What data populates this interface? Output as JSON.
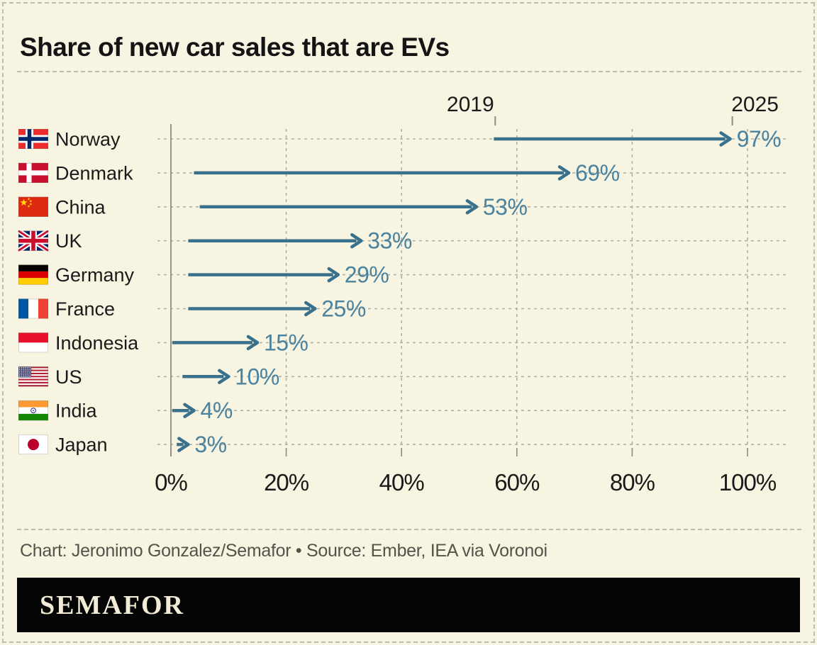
{
  "title": "Share of new car sales that are EVs",
  "credit": "Chart: Jeronimo Gonzalez/Semafor • Source: Ember, IEA via Voronoi",
  "logo": "SEMAFOR",
  "chart_data": {
    "type": "bar",
    "subtype": "arrow-change",
    "title": "Share of new car sales that are EVs",
    "xlabel": "",
    "ylabel": "",
    "xlim": [
      0,
      100
    ],
    "grid": "dashed",
    "x_tick_labels": [
      "0%",
      "20%",
      "40%",
      "60%",
      "80%",
      "100%"
    ],
    "x_tick_values": [
      0,
      20,
      40,
      60,
      80,
      100
    ],
    "start_year_label": "2019",
    "end_year_label": "2025",
    "categories": [
      "Norway",
      "Denmark",
      "China",
      "UK",
      "Germany",
      "France",
      "Indonesia",
      "US",
      "India",
      "Japan"
    ],
    "flag_icon_names": [
      "norway-flag-icon",
      "denmark-flag-icon",
      "china-flag-icon",
      "uk-flag-icon",
      "germany-flag-icon",
      "france-flag-icon",
      "indonesia-flag-icon",
      "us-flag-icon",
      "india-flag-icon",
      "japan-flag-icon"
    ],
    "flag_codes": [
      "norway",
      "denmark",
      "china",
      "uk",
      "germany",
      "france",
      "indonesia",
      "us",
      "india",
      "japan"
    ],
    "series": [
      {
        "name": "2019",
        "values": [
          56,
          4,
          5,
          3,
          3,
          3,
          0,
          2,
          0,
          1
        ]
      },
      {
        "name": "2025",
        "values": [
          97,
          69,
          53,
          33,
          29,
          25,
          15,
          10,
          4,
          3
        ]
      }
    ],
    "end_labels": [
      "97%",
      "69%",
      "53%",
      "33%",
      "29%",
      "25%",
      "15%",
      "10%",
      "4%",
      "3%"
    ],
    "colors": {
      "background": "#f8f4e2",
      "arrow": "#39718c",
      "value_label": "#4a83a0",
      "text_dark": "#1a1a1a",
      "grid_dashed": "#b0afa2",
      "axis_solid": "#8e8d81",
      "credit_text": "#53534b",
      "logo_bar": "#050505",
      "logo_text": "#f2ecd7"
    }
  }
}
